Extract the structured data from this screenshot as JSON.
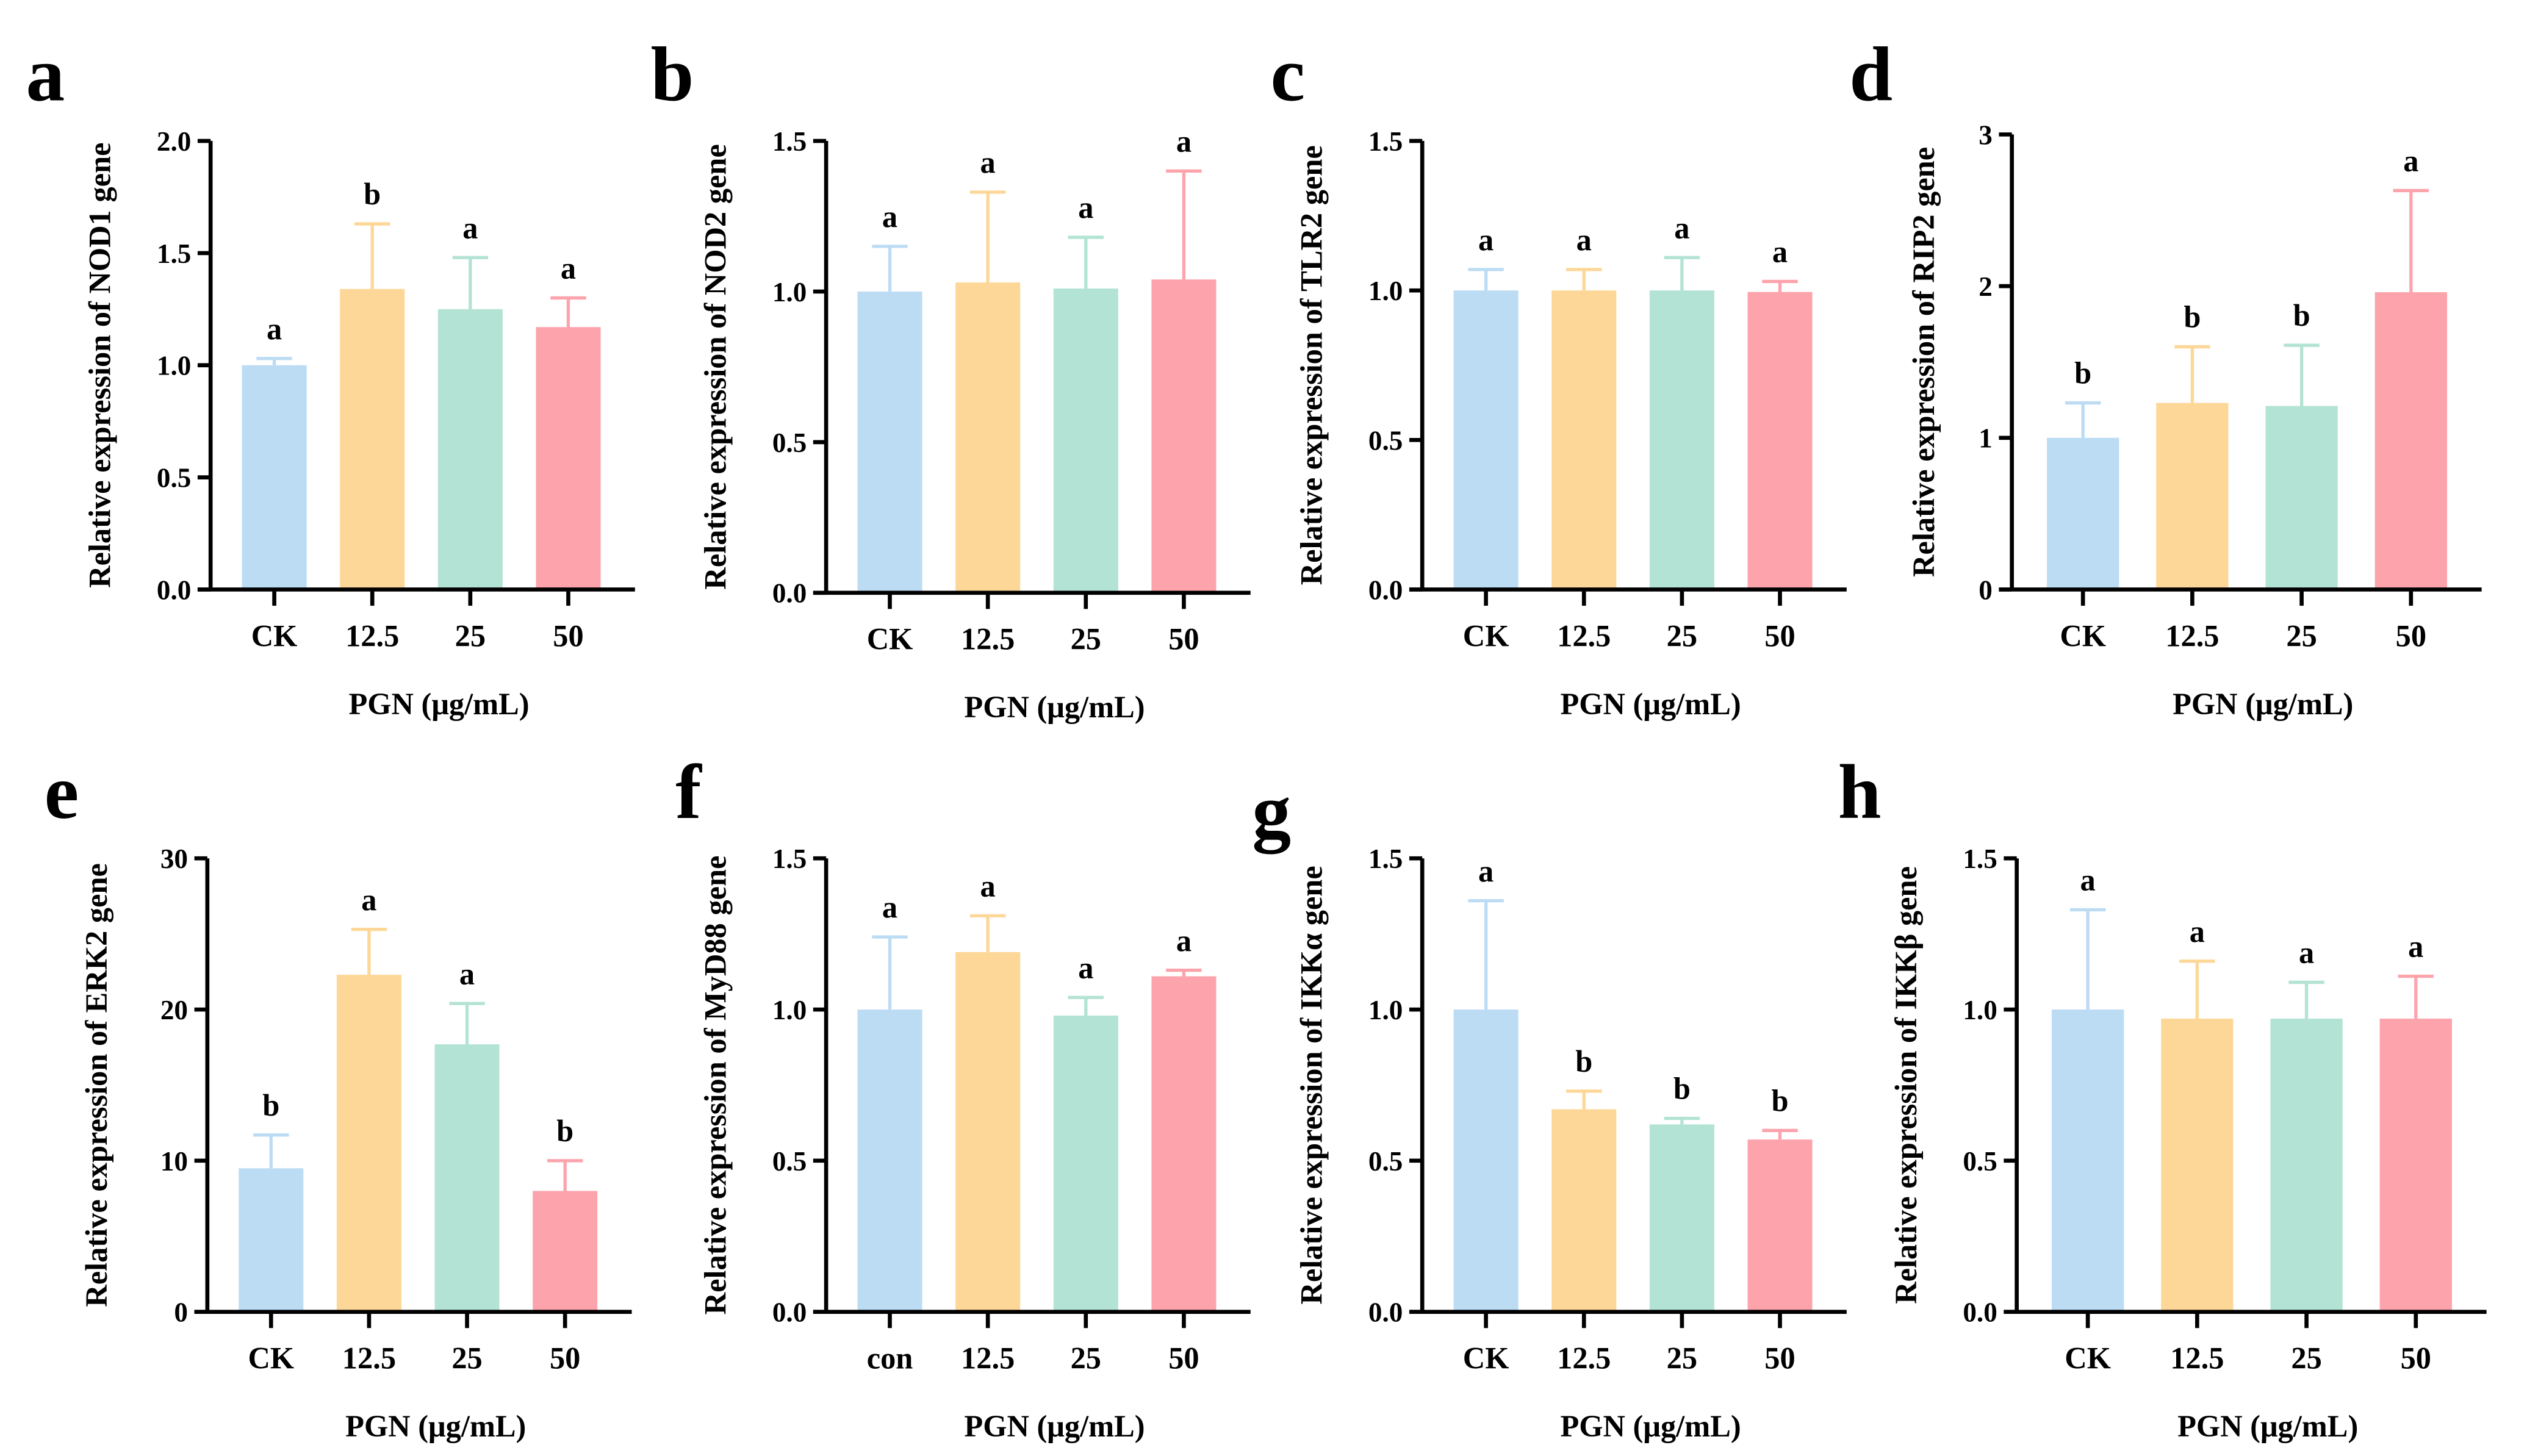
{
  "colors": [
    "#bcdcf4",
    "#fdd797",
    "#b3e3d4",
    "#fda3ac"
  ],
  "chart_data": [
    {
      "type": "bar",
      "panel": "a",
      "ylabel": "Relative expression of NOD1 gene",
      "xlabel": "PGN (μg/mL)",
      "categories": [
        "CK",
        "12.5",
        "25",
        "50"
      ],
      "values": [
        1.0,
        1.34,
        1.25,
        1.17
      ],
      "error_top": [
        1.03,
        1.63,
        1.48,
        1.3
      ],
      "letters": [
        "a",
        "b",
        "a",
        "a"
      ],
      "ylim": [
        0,
        2
      ],
      "yticks": [
        "0.0",
        "0.5",
        "1.0",
        "1.5",
        "2.0"
      ],
      "ytick_values": [
        0,
        0.5,
        1,
        1.5,
        2
      ]
    },
    {
      "type": "bar",
      "panel": "b",
      "ylabel": "Relative expression of NOD2 gene",
      "xlabel": "PGN (μg/mL)",
      "categories": [
        "CK",
        "12.5",
        "25",
        "50"
      ],
      "values": [
        1.0,
        1.03,
        1.01,
        1.04
      ],
      "error_top": [
        1.15,
        1.33,
        1.18,
        1.4
      ],
      "letters": [
        "a",
        "a",
        "a",
        "a"
      ],
      "ylim": [
        0,
        1.5
      ],
      "yticks": [
        "0.0",
        "0.5",
        "1.0",
        "1.5"
      ],
      "ytick_values": [
        0,
        0.5,
        1,
        1.5
      ]
    },
    {
      "type": "bar",
      "panel": "c",
      "ylabel": "Relative expression of TLR2 gene",
      "xlabel": "PGN (μg/mL)",
      "categories": [
        "CK",
        "12.5",
        "25",
        "50"
      ],
      "values": [
        1.0,
        1.0,
        1.0,
        0.995
      ],
      "error_top": [
        1.07,
        1.07,
        1.11,
        1.03
      ],
      "letters": [
        "a",
        "a",
        "a",
        "a"
      ],
      "ylim": [
        0,
        1.5
      ],
      "yticks": [
        "0.0",
        "0.5",
        "1.0",
        "1.5"
      ],
      "ytick_values": [
        0,
        0.5,
        1,
        1.5
      ]
    },
    {
      "type": "bar",
      "panel": "d",
      "ylabel": "Relative expression of RIP2 gene",
      "xlabel": "PGN (μg/mL)",
      "categories": [
        "CK",
        "12.5",
        "25",
        "50"
      ],
      "values": [
        1.0,
        1.23,
        1.21,
        1.96
      ],
      "error_top": [
        1.23,
        1.6,
        1.61,
        2.63
      ],
      "letters": [
        "b",
        "b",
        "b",
        "a"
      ],
      "ylim": [
        0,
        3
      ],
      "yticks": [
        "0",
        "1",
        "2",
        "3"
      ],
      "ytick_values": [
        0,
        1,
        2,
        3
      ]
    },
    {
      "type": "bar",
      "panel": "e",
      "ylabel": "Relative expression of ERK2 gene",
      "xlabel": "PGN (μg/mL)",
      "categories": [
        "CK",
        "12.5",
        "25",
        "50"
      ],
      "values": [
        9.5,
        22.3,
        17.7,
        8.0
      ],
      "error_top": [
        11.7,
        25.3,
        20.4,
        10.0
      ],
      "letters": [
        "b",
        "a",
        "a",
        "b"
      ],
      "ylim": [
        0,
        30
      ],
      "yticks": [
        "0",
        "10",
        "20",
        "30"
      ],
      "ytick_values": [
        0,
        10,
        20,
        30
      ]
    },
    {
      "type": "bar",
      "panel": "f",
      "ylabel": "Relative expression of MyD88 gene",
      "xlabel": "PGN (μg/mL)",
      "categories": [
        "con",
        "12.5",
        "25",
        "50"
      ],
      "values": [
        1.0,
        1.19,
        0.98,
        1.11
      ],
      "error_top": [
        1.24,
        1.31,
        1.04,
        1.13
      ],
      "letters": [
        "a",
        "a",
        "a",
        "a"
      ],
      "ylim": [
        0,
        1.5
      ],
      "yticks": [
        "0.0",
        "0.5",
        "1.0",
        "1.5"
      ],
      "ytick_values": [
        0,
        0.5,
        1,
        1.5
      ]
    },
    {
      "type": "bar",
      "panel": "g",
      "ylabel": "Relative expression of IKKα gene",
      "xlabel": "PGN (μg/mL)",
      "categories": [
        "CK",
        "12.5",
        "25",
        "50"
      ],
      "values": [
        1.0,
        0.67,
        0.62,
        0.57
      ],
      "error_top": [
        1.36,
        0.73,
        0.64,
        0.6
      ],
      "letters": [
        "a",
        "b",
        "b",
        "b"
      ],
      "ylim": [
        0,
        1.5
      ],
      "yticks": [
        "0.0",
        "0.5",
        "1.0",
        "1.5"
      ],
      "ytick_values": [
        0,
        0.5,
        1,
        1.5
      ]
    },
    {
      "type": "bar",
      "panel": "h",
      "ylabel": "Relative expression of IKKβ gene",
      "xlabel": "PGN (μg/mL)",
      "categories": [
        "CK",
        "12.5",
        "25",
        "50"
      ],
      "values": [
        1.0,
        0.97,
        0.97,
        0.97
      ],
      "error_top": [
        1.33,
        1.16,
        1.09,
        1.11
      ],
      "letters": [
        "a",
        "a",
        "a",
        "a"
      ],
      "ylim": [
        0,
        1.5
      ],
      "yticks": [
        "0.0",
        "0.5",
        "1.0",
        "1.5"
      ],
      "ytick_values": [
        0,
        0.5,
        1,
        1.5
      ]
    }
  ]
}
